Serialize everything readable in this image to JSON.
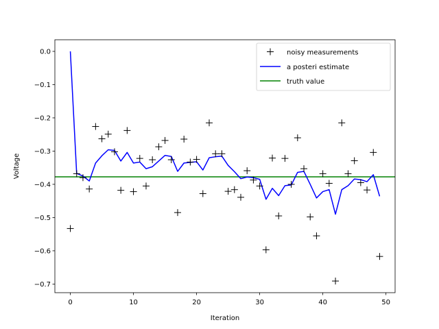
{
  "chart_data": {
    "type": "line",
    "title": "",
    "xlabel": "Iteration",
    "ylabel": "Voltage",
    "xlim": [
      -2.45,
      51.45
    ],
    "ylim": [
      -0.726,
      0.035
    ],
    "x_ticks": [
      0,
      10,
      20,
      30,
      40,
      50
    ],
    "y_ticks": [
      0.0,
      -0.1,
      -0.2,
      -0.3,
      -0.4,
      -0.5,
      -0.6,
      -0.7
    ],
    "x_tick_labels": [
      "0",
      "10",
      "20",
      "30",
      "40",
      "50"
    ],
    "y_tick_labels": [
      "0.0",
      "−0.1",
      "−0.2",
      "−0.3",
      "−0.4",
      "−0.5",
      "−0.6",
      "−0.7"
    ],
    "grid": false,
    "legend_position": "top-right",
    "series": [
      {
        "name": "noisy measurements",
        "style": "markers",
        "marker": "plus",
        "color": "#000000",
        "x": [
          0,
          1,
          2,
          3,
          4,
          5,
          6,
          7,
          8,
          9,
          10,
          11,
          12,
          13,
          14,
          15,
          16,
          17,
          18,
          19,
          20,
          21,
          22,
          23,
          24,
          25,
          26,
          27,
          28,
          29,
          30,
          31,
          32,
          33,
          34,
          35,
          36,
          37,
          38,
          39,
          40,
          41,
          42,
          43,
          44,
          45,
          46,
          47,
          48,
          49
        ],
        "values": [
          -0.533,
          -0.368,
          -0.38,
          -0.414,
          -0.226,
          -0.263,
          -0.249,
          -0.302,
          -0.418,
          -0.238,
          -0.422,
          -0.322,
          -0.405,
          -0.326,
          -0.287,
          -0.268,
          -0.326,
          -0.485,
          -0.264,
          -0.333,
          -0.325,
          -0.428,
          -0.215,
          -0.308,
          -0.308,
          -0.421,
          -0.416,
          -0.439,
          -0.359,
          -0.387,
          -0.405,
          -0.597,
          -0.321,
          -0.495,
          -0.322,
          -0.4,
          -0.26,
          -0.353,
          -0.498,
          -0.555,
          -0.368,
          -0.397,
          -0.691,
          -0.215,
          -0.368,
          -0.329,
          -0.395,
          -0.417,
          -0.304,
          -0.617
        ]
      },
      {
        "name": "a posteri estimate",
        "style": "line",
        "color": "#0000ff",
        "x": [
          0,
          1,
          2,
          3,
          4,
          5,
          6,
          7,
          8,
          9,
          10,
          11,
          12,
          13,
          14,
          15,
          16,
          17,
          18,
          19,
          20,
          21,
          22,
          23,
          24,
          25,
          26,
          27,
          28,
          29,
          30,
          31,
          32,
          33,
          34,
          35,
          36,
          37,
          38,
          39,
          40,
          41,
          42,
          43,
          44,
          45,
          46,
          47,
          48,
          49
        ],
        "values": [
          0.0,
          -0.367,
          -0.375,
          -0.39,
          -0.336,
          -0.314,
          -0.296,
          -0.298,
          -0.33,
          -0.304,
          -0.336,
          -0.333,
          -0.353,
          -0.347,
          -0.33,
          -0.313,
          -0.316,
          -0.361,
          -0.336,
          -0.334,
          -0.332,
          -0.357,
          -0.32,
          -0.317,
          -0.315,
          -0.343,
          -0.362,
          -0.383,
          -0.378,
          -0.38,
          -0.385,
          -0.445,
          -0.412,
          -0.434,
          -0.404,
          -0.402,
          -0.364,
          -0.361,
          -0.4,
          -0.441,
          -0.422,
          -0.416,
          -0.49,
          -0.416,
          -0.404,
          -0.384,
          -0.386,
          -0.392,
          -0.371,
          -0.436
        ]
      },
      {
        "name": "truth value",
        "style": "hline",
        "color": "#008000",
        "value": -0.3775
      }
    ]
  }
}
